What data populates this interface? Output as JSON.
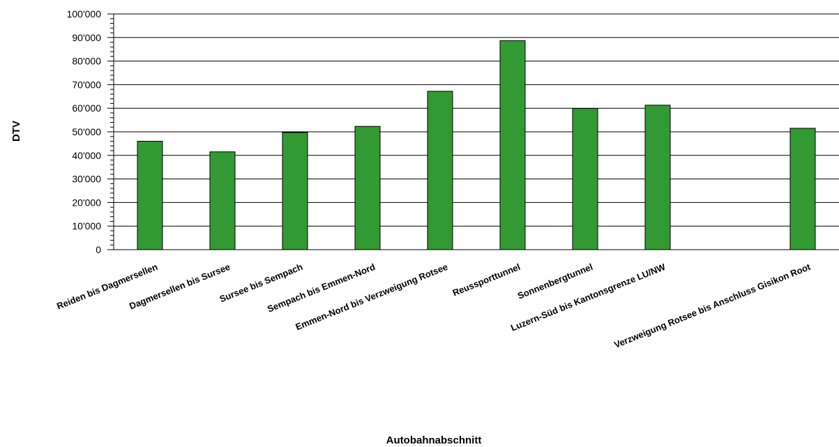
{
  "chart_data": {
    "type": "bar",
    "title": "",
    "xlabel": "Autobahnabschnitt",
    "ylabel": "DTV",
    "ylim": [
      0,
      100000
    ],
    "grid": true,
    "bar_color": "#339933",
    "categories": [
      "Reiden bis Dagmersellen",
      "Dagmersellen bis Sursee",
      "Sursee bis Sempach",
      "Sempach bis Emmen-Nord",
      "Emmen-Nord bis Verzweigung Rotsee",
      "Reussporttunnel",
      "Sonnenbergtunnel",
      "Luzern-Süd bis Kantonsgrenze LU/NW",
      "",
      "Verzweigung Rotsee bis Anschluss Gisikon Root"
    ],
    "values": [
      46000,
      41500,
      49700,
      52300,
      67200,
      88700,
      59900,
      61300,
      null,
      51500
    ],
    "yticks": [
      {
        "value": 0,
        "label": "0"
      },
      {
        "value": 10000,
        "label": "10'000"
      },
      {
        "value": 20000,
        "label": "20'000"
      },
      {
        "value": 30000,
        "label": "30'000"
      },
      {
        "value": 40000,
        "label": "40'000"
      },
      {
        "value": 50000,
        "label": "50'000"
      },
      {
        "value": 60000,
        "label": "60'000"
      },
      {
        "value": 70000,
        "label": "70'000"
      },
      {
        "value": 80000,
        "label": "80'000"
      },
      {
        "value": 90000,
        "label": "90'000"
      },
      {
        "value": 100000,
        "label": "100'000"
      }
    ]
  }
}
